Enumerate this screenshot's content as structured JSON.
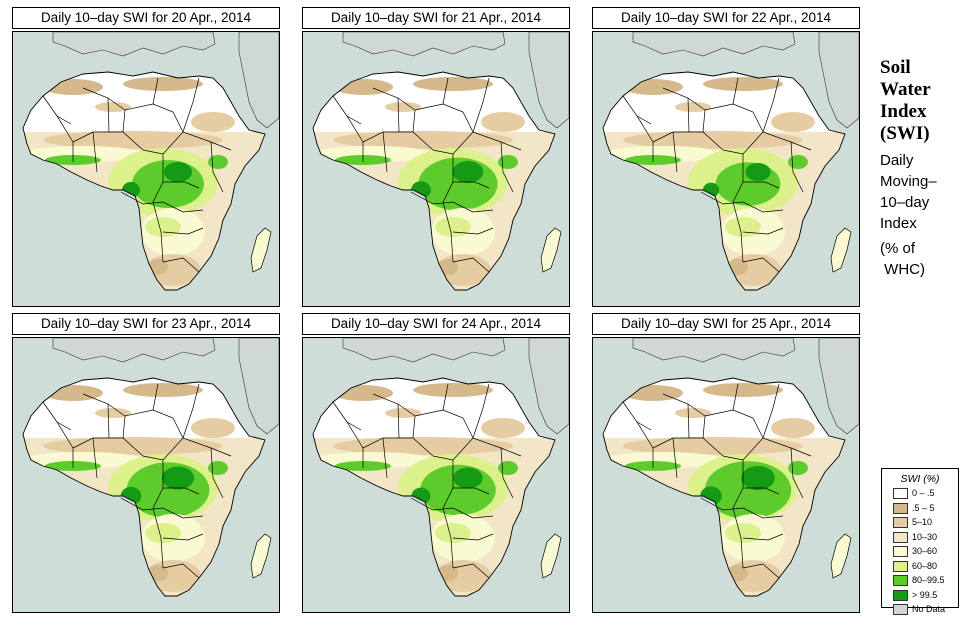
{
  "panels": [
    {
      "title": "Daily 10–day SWI for  20 Apr., 2014",
      "wet_level": 1.0
    },
    {
      "title": "Daily 10–day SWI for  21 Apr., 2014",
      "wet_level": 1.1
    },
    {
      "title": "Daily 10–day SWI for  22 Apr., 2014",
      "wet_level": 0.9
    },
    {
      "title": "Daily 10–day SWI for  23 Apr., 2014",
      "wet_level": 1.15
    },
    {
      "title": "Daily 10–day SWI for  24 Apr., 2014",
      "wet_level": 1.05
    },
    {
      "title": "Daily 10–day SWI for  25 Apr., 2014",
      "wet_level": 1.2
    }
  ],
  "side": {
    "title_lines": [
      "Soil",
      "Water",
      "Index",
      "(SWI)"
    ],
    "desc_lines": [
      "Daily",
      "Moving–",
      "10–day",
      "Index"
    ],
    "unit_lines": [
      "(% of",
      " WHC)"
    ]
  },
  "legend": {
    "title": "SWI (%)",
    "items": [
      {
        "label": "0 – .5",
        "color": "#ffffff"
      },
      {
        "label": ".5 – 5",
        "color": "#d6b98a"
      },
      {
        "label": "5–10",
        "color": "#e6cca3"
      },
      {
        "label": "10–30",
        "color": "#f3e6c6"
      },
      {
        "label": "30–60",
        "color": "#fafad2"
      },
      {
        "label": "60–80",
        "color": "#dcf08c"
      },
      {
        "label": "80–99.5",
        "color": "#5ecb2c"
      },
      {
        "label": "> 99.5",
        "color": "#159a15"
      },
      {
        "label": "No Data",
        "color": "#cfd8d6"
      }
    ]
  },
  "colors": {
    "ocean": "#cfddd8",
    "sahara": "#ffffff",
    "dry": "#d6b98a",
    "semi": "#e6cca3",
    "mid": "#f3e6c6",
    "moist": "#fafad2",
    "wet": "#dcf08c",
    "verywet": "#5ecb2c",
    "sat": "#159a15",
    "nodata": "#cfd8d6",
    "border": "#000000"
  }
}
